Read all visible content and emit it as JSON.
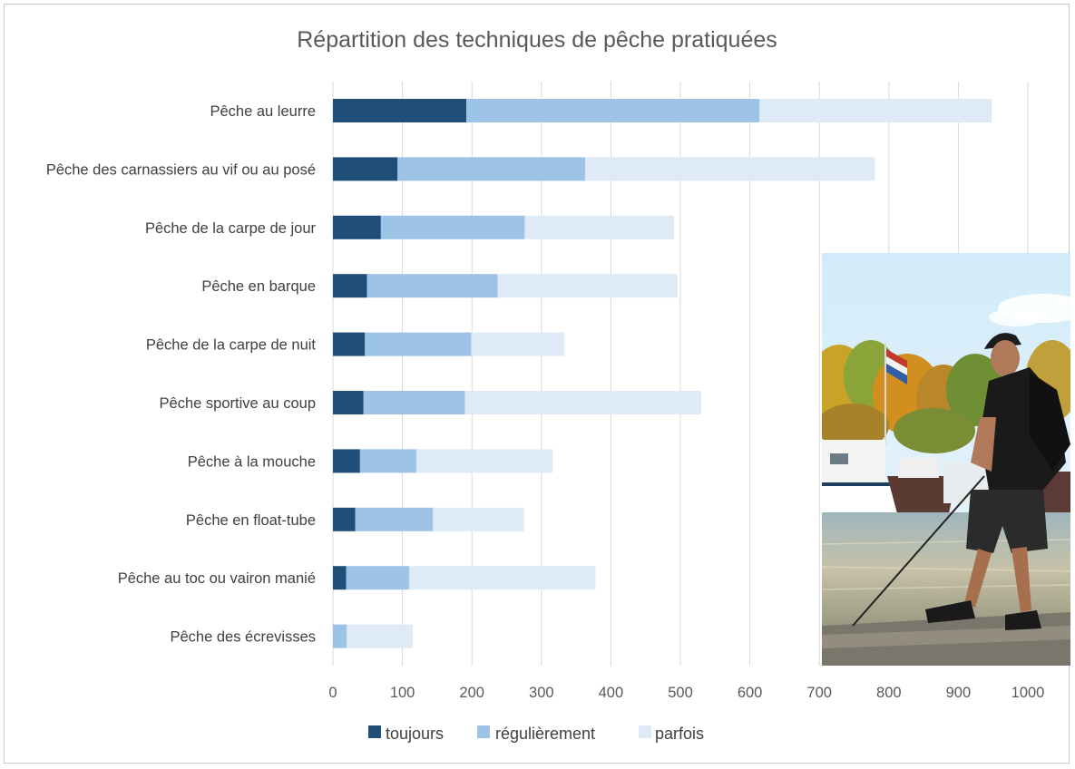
{
  "chart_data": {
    "type": "bar",
    "orientation": "horizontal",
    "stacked": true,
    "title": "Répartition des techniques de pêche pratiquées",
    "categories": [
      "Pêche au leurre",
      "Pêche des carnassiers au vif ou au posé",
      "Pêche de la carpe de jour",
      "Pêche en barque",
      "Pêche de la carpe de nuit",
      "Pêche sportive au coup",
      "Pêche à la mouche",
      "Pêche en float-tube",
      "Pêche au toc ou vairon manié",
      "Pêche des écrevisses"
    ],
    "series": [
      {
        "name": "toujours",
        "color": "#1f4e79",
        "values": [
          192,
          93,
          69,
          49,
          46,
          44,
          39,
          32,
          19,
          0
        ]
      },
      {
        "name": "régulièrement",
        "color": "#9dc3e6",
        "values": [
          422,
          270,
          207,
          188,
          153,
          146,
          81,
          112,
          91,
          20
        ]
      },
      {
        "name": "parfois",
        "color": "#deebf7",
        "values": [
          334,
          417,
          215,
          259,
          134,
          340,
          196,
          131,
          268,
          95
        ]
      }
    ],
    "xlim": [
      0,
      1000
    ],
    "xticks": [
      "0",
      "100",
      "200",
      "300",
      "400",
      "500",
      "600",
      "700",
      "800",
      "900",
      "1000"
    ],
    "grid": true,
    "legend_position": "bottom"
  },
  "photo": {
    "alt": "fishing-photo"
  }
}
